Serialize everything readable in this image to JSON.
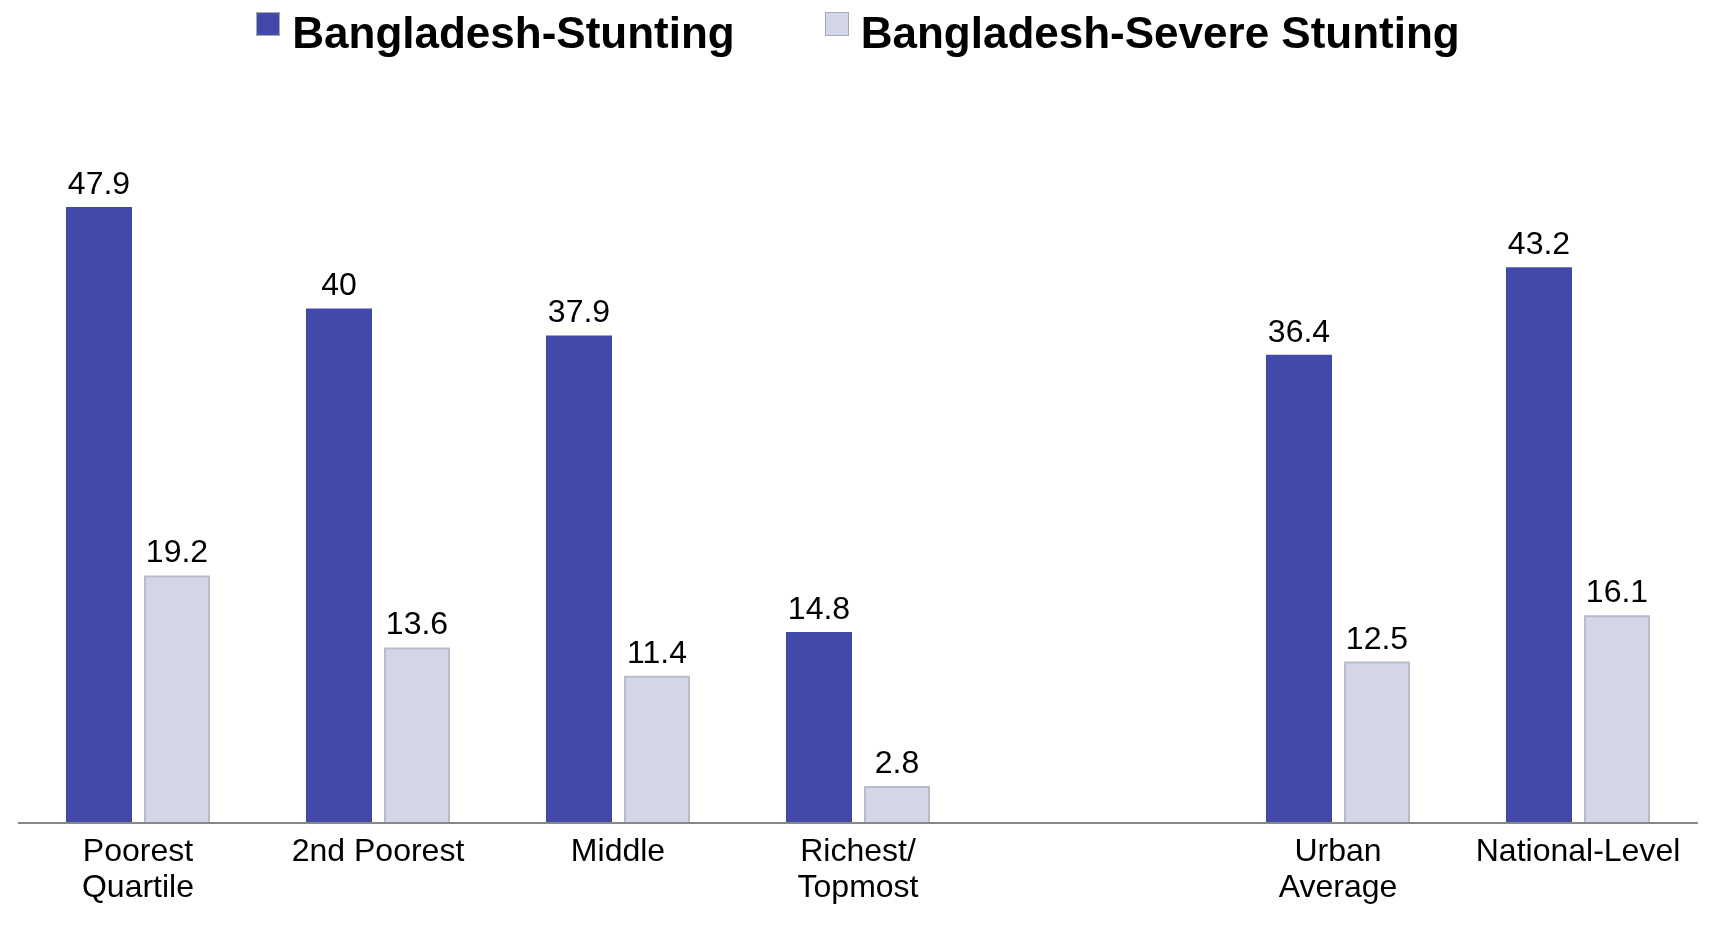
{
  "chart_data": {
    "type": "bar",
    "categories": [
      "Poorest Quartile",
      "2nd Poorest",
      "Middle",
      "Richest/Topmost",
      null,
      "Urban Average",
      "National-Level"
    ],
    "series": [
      {
        "name": "Bangladesh-Stunting",
        "color": "#4349a8",
        "values": [
          47.9,
          40,
          37.9,
          14.8,
          null,
          36.4,
          43.2
        ]
      },
      {
        "name": "Bangladesh-Severe Stunting",
        "color": "#d3d6e6",
        "values": [
          19.2,
          13.6,
          11.4,
          2.8,
          null,
          12.5,
          16.1
        ]
      }
    ],
    "data_labels": true,
    "legend": "top",
    "grid": false
  }
}
